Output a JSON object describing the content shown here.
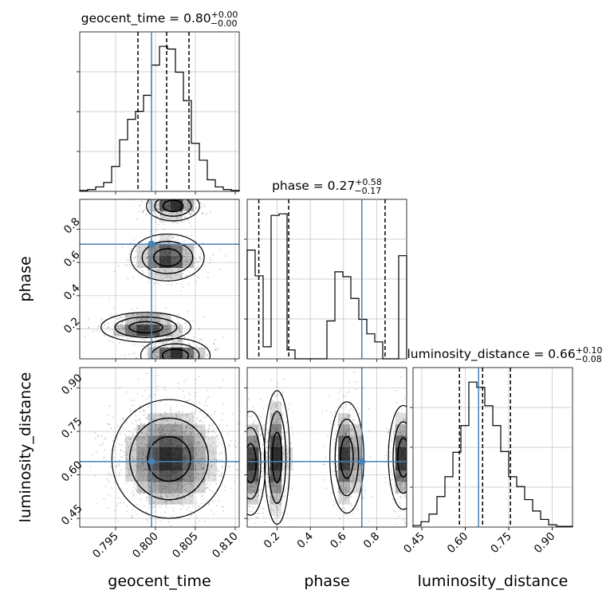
{
  "chart_data": {
    "type": "corner",
    "parameters": [
      "geocent_time",
      "phase",
      "luminosity_distance"
    ],
    "titles": [
      {
        "param": "geocent_time",
        "value": "0.80",
        "plus": "+0.00",
        "minus": "−0.00"
      },
      {
        "param": "phase",
        "value": "0.27",
        "plus": "+0.58",
        "minus": "−0.17"
      },
      {
        "param": "luminosity_distance",
        "value": "0.66",
        "plus": "+0.10",
        "minus": "−0.08"
      }
    ],
    "axis_labels": {
      "x": [
        "geocent_time",
        "phase",
        "luminosity_distance"
      ],
      "y": [
        "phase",
        "luminosity_distance"
      ]
    },
    "ranges": {
      "geocent_time": [
        0.7905,
        0.8105
      ],
      "phase": [
        0.02,
        0.98
      ],
      "luminosity_distance": [
        0.42,
        0.97
      ]
    },
    "ticks": {
      "geocent_time": {
        "values": [
          0.795,
          0.8,
          0.805,
          0.81
        ],
        "labels": [
          "0.795",
          "0.800",
          "0.805",
          "0.810"
        ]
      },
      "phase": {
        "values": [
          0.2,
          0.4,
          0.6,
          0.8
        ],
        "labels": [
          "0.2",
          "0.4",
          "0.6",
          "0.8"
        ]
      },
      "luminosity_distance": {
        "values": [
          0.45,
          0.6,
          0.75,
          0.9
        ],
        "labels": [
          "0.45",
          "0.60",
          "0.75",
          "0.90"
        ]
      }
    },
    "truths": {
      "geocent_time": 0.7995,
      "phase": 0.71,
      "luminosity_distance": 0.646
    },
    "quantiles": {
      "geocent_time": [
        0.7978,
        0.8014,
        0.8042
      ],
      "phase": [
        0.09,
        0.27,
        0.85
      ],
      "luminosity_distance": [
        0.58,
        0.66,
        0.756
      ]
    },
    "histograms": {
      "geocent_time": {
        "edges": [
          0.7905,
          0.7915,
          0.7925,
          0.7935,
          0.7945,
          0.7955,
          0.7965,
          0.7975,
          0.7985,
          0.7995,
          0.8005,
          0.8015,
          0.8025,
          0.8035,
          0.8045,
          0.8055,
          0.8065,
          0.8075,
          0.8085,
          0.8095,
          0.8105
        ],
        "counts": [
          1,
          2,
          5,
          10,
          28,
          58,
          81,
          90,
          108,
          142,
          163,
          160,
          134,
          102,
          54,
          35,
          13,
          5,
          2,
          1
        ]
      },
      "phase": {
        "edges": [
          0.02,
          0.068,
          0.116,
          0.164,
          0.212,
          0.26,
          0.308,
          0.356,
          0.404,
          0.452,
          0.5,
          0.548,
          0.596,
          0.644,
          0.692,
          0.74,
          0.788,
          0.836,
          0.884,
          0.932,
          0.98
        ],
        "counts": [
          135,
          103,
          15,
          178,
          180,
          11,
          0,
          0,
          0,
          0,
          47,
          108,
          102,
          75,
          49,
          31,
          21,
          0,
          0,
          128
        ]
      },
      "luminosity_distance": {
        "edges": [
          0.42,
          0.4475,
          0.475,
          0.5025,
          0.53,
          0.5575,
          0.585,
          0.6125,
          0.64,
          0.6675,
          0.695,
          0.7225,
          0.75,
          0.7775,
          0.805,
          0.8325,
          0.86,
          0.8875,
          0.915,
          0.9425,
          0.97
        ],
        "counts": [
          2,
          7,
          17,
          40,
          66,
          98,
          133,
          190,
          183,
          159,
          133,
          99,
          66,
          53,
          36,
          21,
          10,
          3,
          1,
          1
        ]
      }
    },
    "density_clusters": {
      "geocent_time_vs_phase": [
        {
          "x": 0.8022,
          "y": 0.94,
          "sx": 0.0013,
          "sy": 0.035
        },
        {
          "x": 0.8015,
          "y": 0.63,
          "sx": 0.0018,
          "sy": 0.055
        },
        {
          "x": 0.7988,
          "y": 0.21,
          "sx": 0.0022,
          "sy": 0.035
        },
        {
          "x": 0.8025,
          "y": 0.04,
          "sx": 0.0017,
          "sy": 0.04
        }
      ],
      "phase_vs_luminosity_distance": [
        {
          "x": 0.04,
          "y": 0.64,
          "sx": 0.035,
          "sy": 0.07
        },
        {
          "x": 0.2,
          "y": 0.66,
          "sx": 0.03,
          "sy": 0.09
        },
        {
          "x": 0.62,
          "y": 0.66,
          "sx": 0.04,
          "sy": 0.075
        },
        {
          "x": 0.96,
          "y": 0.66,
          "sx": 0.035,
          "sy": 0.07
        }
      ],
      "geocent_time_vs_luminosity_distance": [
        {
          "x": 0.8017,
          "y": 0.655,
          "sx": 0.0028,
          "sy": 0.08
        }
      ]
    },
    "colors": {
      "truth": "#4682b4",
      "hist": "#000000",
      "grid": "#c0c0c0",
      "density": "#000000"
    }
  }
}
